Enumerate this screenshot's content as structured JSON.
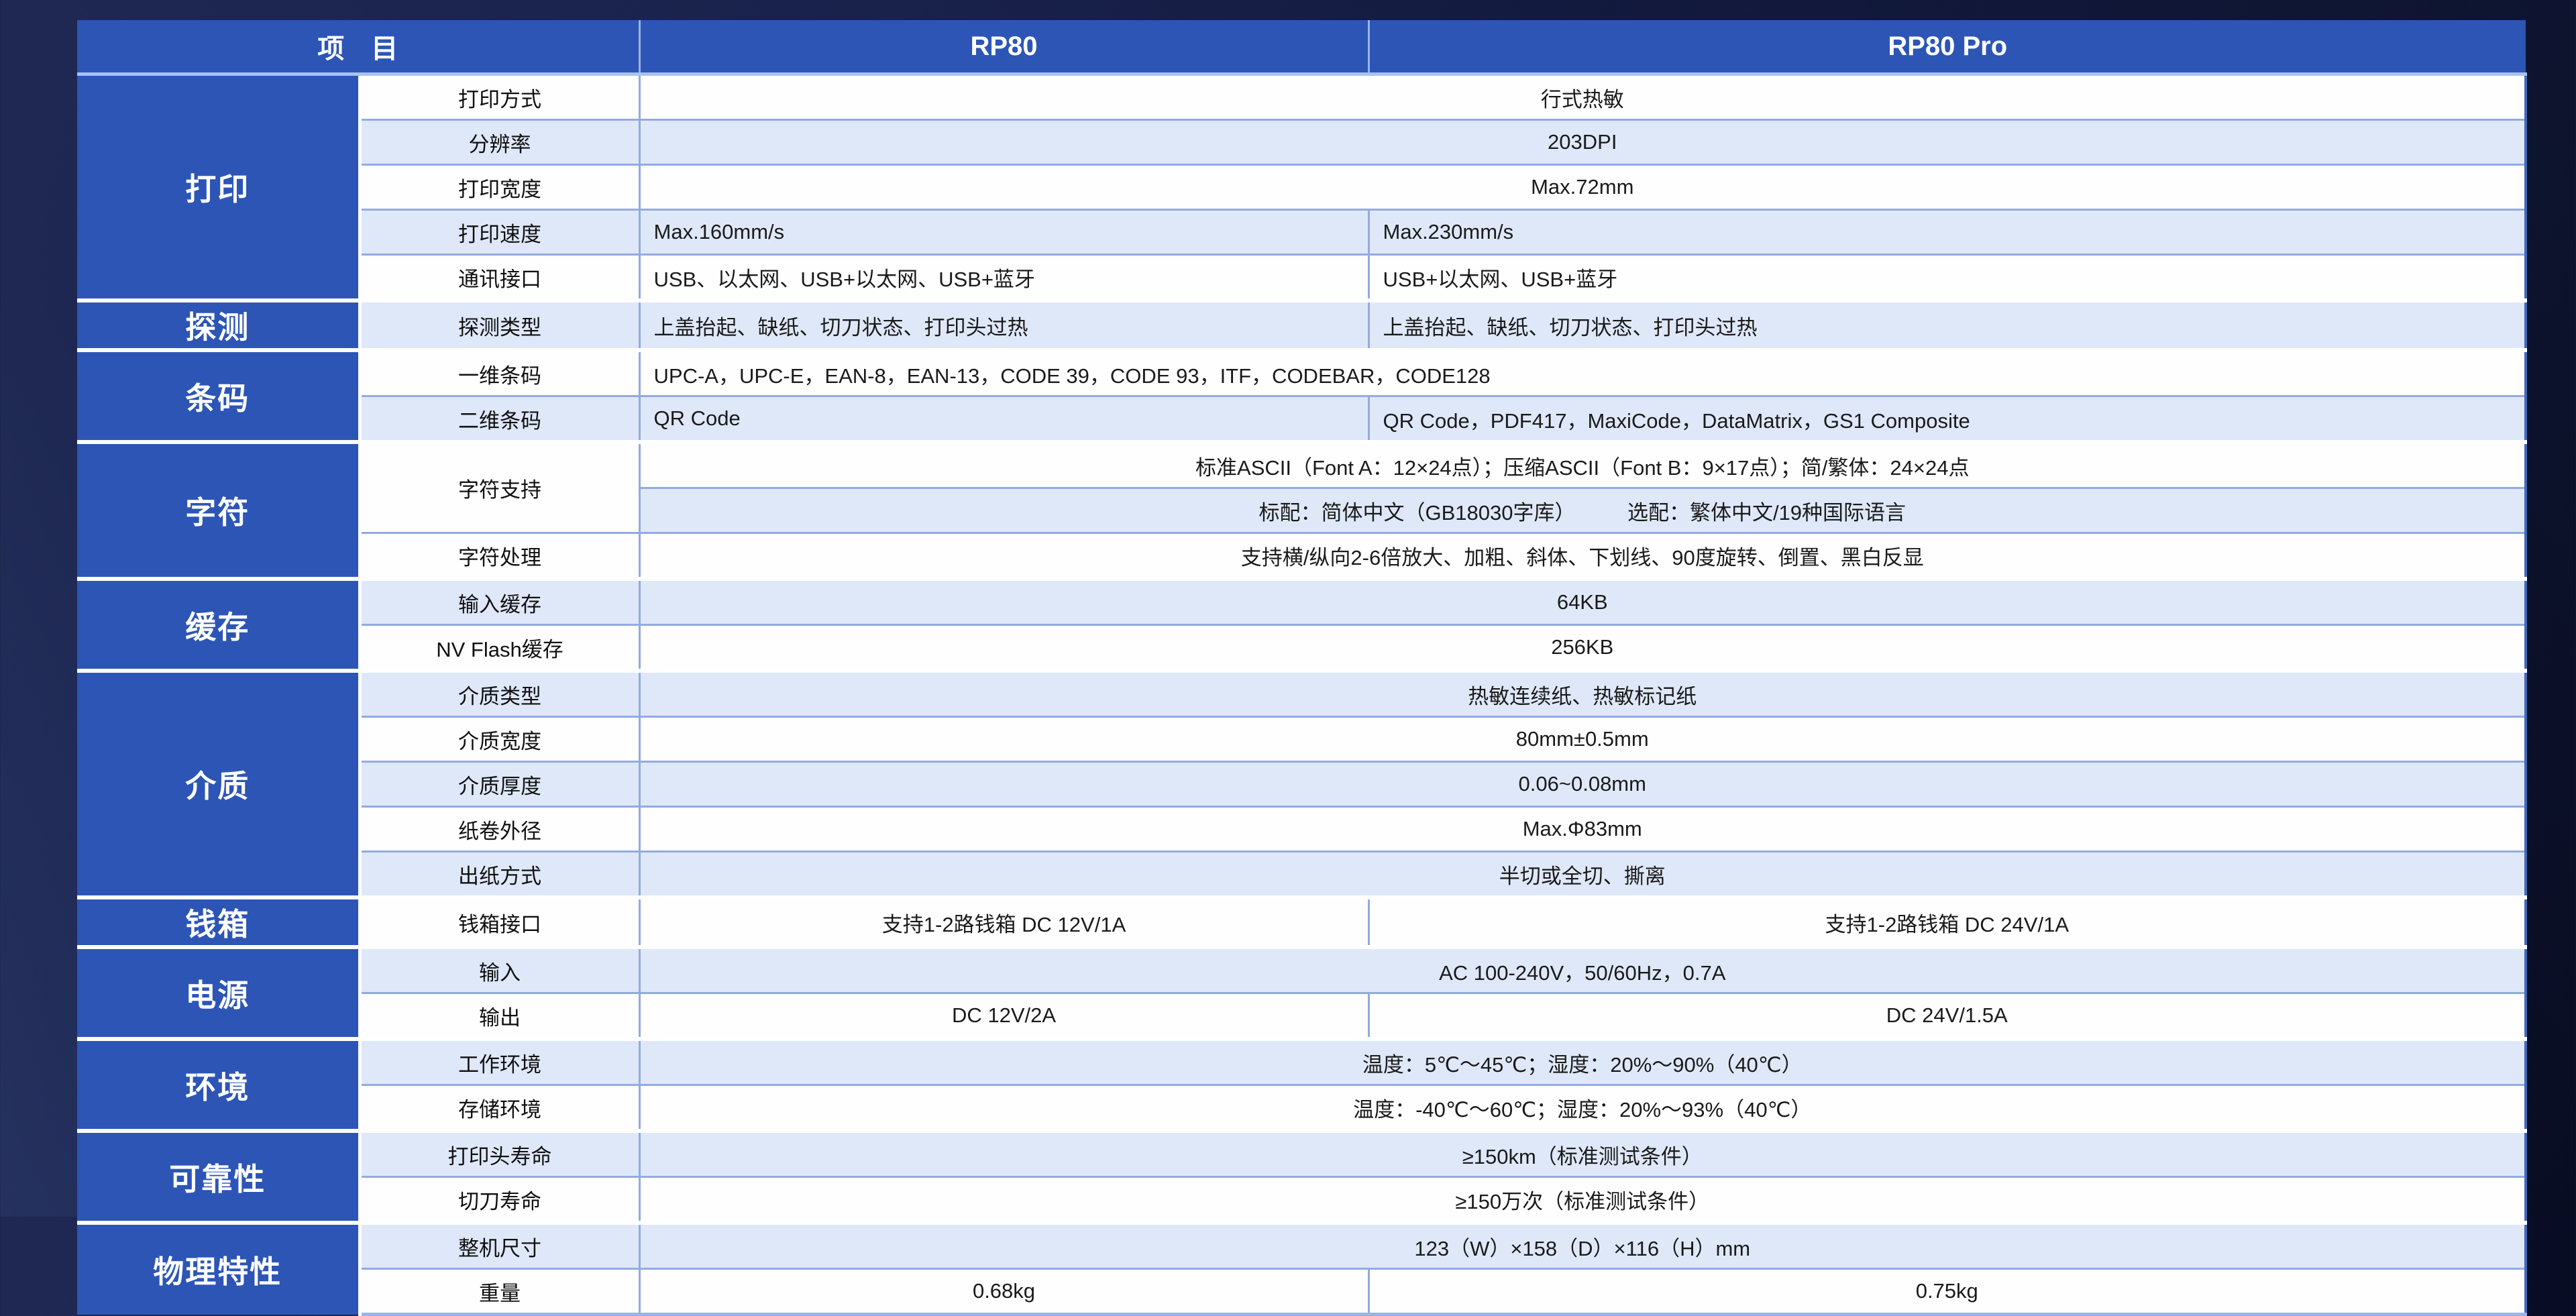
{
  "page": {
    "description": "RP80 / RP80 Pro thermal printer specification table",
    "colors": {
      "page_bg": "#151d43",
      "header_bg": "#2c55b6",
      "category_bg": "#2c55b6",
      "row_white": "#fdfefd",
      "row_light": "#dfe8f8",
      "grid_line": "#92abdf",
      "section_gap": "#ffffff",
      "header_underline": "#a9c2ef",
      "text_white": "#ffffff",
      "text_dark": "#1a1a1a"
    }
  },
  "table": {
    "header": {
      "item": "项　目",
      "rp80": "RP80",
      "rp80_pro": "RP80 Pro"
    },
    "sections": [
      {
        "category": "打印",
        "rows": [
          {
            "label": "打印方式",
            "cells": [
              {
                "span": 2,
                "align": "center",
                "text": "行式热敏"
              }
            ]
          },
          {
            "label": "分辨率",
            "cells": [
              {
                "span": 2,
                "align": "center",
                "text": "203DPI"
              }
            ]
          },
          {
            "label": "打印宽度",
            "cells": [
              {
                "span": 2,
                "align": "center",
                "text": "Max.72mm"
              }
            ]
          },
          {
            "label": "打印速度",
            "cells": [
              {
                "align": "left",
                "text": "Max.160mm/s"
              },
              {
                "align": "left",
                "text": "Max.230mm/s"
              }
            ]
          },
          {
            "label": "通讯接口",
            "cells": [
              {
                "align": "left",
                "text": "USB、以太网、USB+以太网、USB+蓝牙"
              },
              {
                "align": "left",
                "text": "USB+以太网、USB+蓝牙"
              }
            ]
          }
        ]
      },
      {
        "category": "探测",
        "rows": [
          {
            "label": "探测类型",
            "cells": [
              {
                "align": "left",
                "text": "上盖抬起、缺纸、切刀状态、打印头过热"
              },
              {
                "align": "left",
                "text": "上盖抬起、缺纸、切刀状态、打印头过热"
              }
            ]
          }
        ]
      },
      {
        "category": "条码",
        "rows": [
          {
            "label": "一维条码",
            "cells": [
              {
                "span": 2,
                "align": "left",
                "text": "UPC-A，UPC-E，EAN-8，EAN-13，CODE 39，CODE 93，ITF，CODEBAR，CODE128"
              }
            ]
          },
          {
            "label": "二维条码",
            "cells": [
              {
                "align": "left",
                "text": "QR Code"
              },
              {
                "align": "left",
                "text": "QR Code，PDF417，MaxiCode，DataMatrix，GS1 Composite"
              }
            ]
          }
        ]
      },
      {
        "category": "字符",
        "rows": [
          {
            "label": "字符支持",
            "label_rowspan": 2,
            "cells": [
              {
                "span": 2,
                "align": "center",
                "text": "标准ASCII（Font A：12×24点）；压缩ASCII（Font B：9×17点）；简/繁体：24×24点"
              }
            ]
          },
          {
            "no_label": true,
            "label": "",
            "cells": [
              {
                "span": 2,
                "align": "center",
                "text": "标配：简体中文（GB18030字库）　　　选配：繁体中文/19种国际语言"
              }
            ]
          },
          {
            "label": "字符处理",
            "cells": [
              {
                "span": 2,
                "align": "center",
                "text": "支持横/纵向2-6倍放大、加粗、斜体、下划线、90度旋转、倒置、黑白反显"
              }
            ]
          }
        ]
      },
      {
        "category": "缓存",
        "rows": [
          {
            "label": "输入缓存",
            "cells": [
              {
                "span": 2,
                "align": "center",
                "text": "64KB"
              }
            ]
          },
          {
            "label": "NV Flash缓存",
            "cells": [
              {
                "span": 2,
                "align": "center",
                "text": "256KB"
              }
            ]
          }
        ]
      },
      {
        "category": "介质",
        "rows": [
          {
            "label": "介质类型",
            "cells": [
              {
                "span": 2,
                "align": "center",
                "text": "热敏连续纸、热敏标记纸"
              }
            ]
          },
          {
            "label": "介质宽度",
            "cells": [
              {
                "span": 2,
                "align": "center",
                "text": "80mm±0.5mm"
              }
            ]
          },
          {
            "label": "介质厚度",
            "cells": [
              {
                "span": 2,
                "align": "center",
                "text": "0.06~0.08mm"
              }
            ]
          },
          {
            "label": "纸卷外径",
            "cells": [
              {
                "span": 2,
                "align": "center",
                "text": "Max.Φ83mm"
              }
            ]
          },
          {
            "label": "出纸方式",
            "cells": [
              {
                "span": 2,
                "align": "center",
                "text": "半切或全切、撕离"
              }
            ]
          }
        ]
      },
      {
        "category": "钱箱",
        "rows": [
          {
            "label": "钱箱接口",
            "cells": [
              {
                "align": "center",
                "text": "支持1-2路钱箱 DC 12V/1A"
              },
              {
                "align": "center",
                "text": "支持1-2路钱箱 DC 24V/1A"
              }
            ]
          }
        ]
      },
      {
        "category": "电源",
        "rows": [
          {
            "label": "输入",
            "cells": [
              {
                "span": 2,
                "align": "center",
                "text": "AC 100-240V，50/60Hz，0.7A"
              }
            ]
          },
          {
            "label": "输出",
            "cells": [
              {
                "align": "center",
                "text": "DC 12V/2A"
              },
              {
                "align": "center",
                "text": "DC 24V/1.5A"
              }
            ]
          }
        ]
      },
      {
        "category": "环境",
        "rows": [
          {
            "label": "工作环境",
            "cells": [
              {
                "span": 2,
                "align": "center",
                "text": "温度：5℃～45℃；湿度：20%～90%（40℃）"
              }
            ]
          },
          {
            "label": "存储环境",
            "cells": [
              {
                "span": 2,
                "align": "center",
                "text": "温度：-40℃～60℃；湿度：20%～93%（40℃）"
              }
            ]
          }
        ]
      },
      {
        "category": "可靠性",
        "rows": [
          {
            "label": "打印头寿命",
            "cells": [
              {
                "span": 2,
                "align": "center",
                "text": "≥150km（标准测试条件）"
              }
            ]
          },
          {
            "label": "切刀寿命",
            "cells": [
              {
                "span": 2,
                "align": "center",
                "text": "≥150万次（标准测试条件）"
              }
            ]
          }
        ]
      },
      {
        "category": "物理特性",
        "rows": [
          {
            "label": "整机尺寸",
            "cells": [
              {
                "span": 2,
                "align": "center",
                "text": "123（W）×158（D）×116（H）mm"
              }
            ]
          },
          {
            "label": "重量",
            "cells": [
              {
                "align": "center",
                "text": "0.68kg"
              },
              {
                "align": "center",
                "text": "0.75kg"
              }
            ]
          }
        ]
      }
    ]
  }
}
